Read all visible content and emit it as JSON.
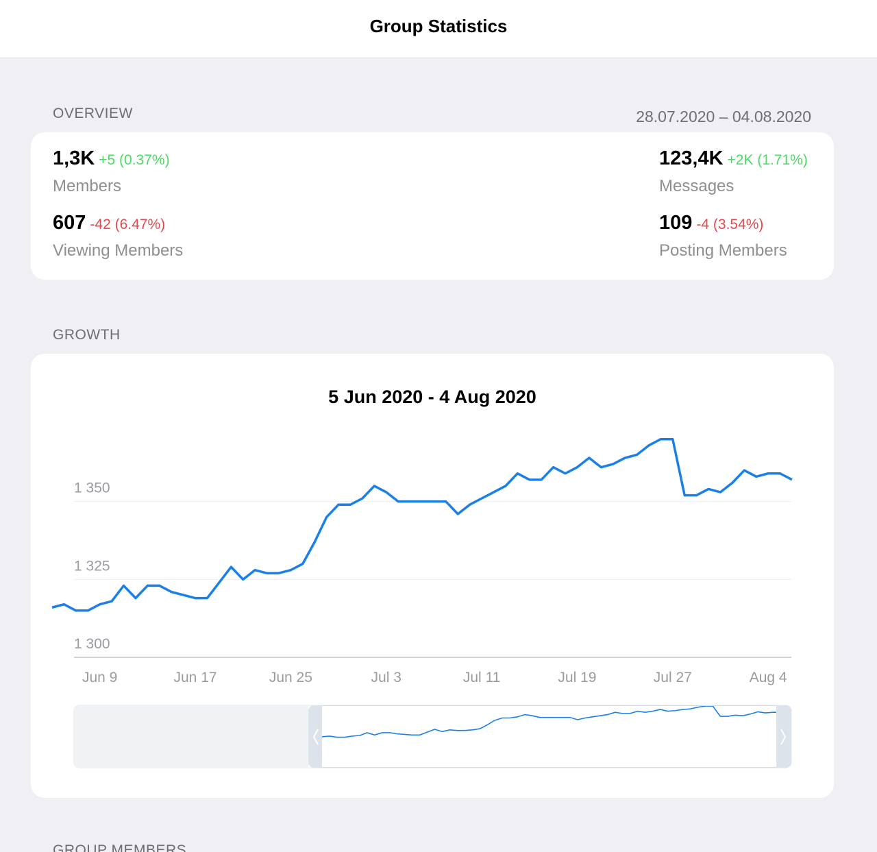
{
  "header": {
    "title": "Group Statistics"
  },
  "overview": {
    "label": "OVERVIEW",
    "period": "28.07.2020 – 04.08.2020",
    "stats": [
      {
        "value": "1,3K",
        "change": "+5 (0.37%)",
        "label": "Members",
        "trend": "up"
      },
      {
        "value": "123,4K",
        "change": "+2K (1.71%)",
        "label": "Messages",
        "trend": "up"
      },
      {
        "value": "607",
        "change": "-42 (6.47%)",
        "label": "Viewing Members",
        "trend": "down"
      },
      {
        "value": "109",
        "change": "-4 (3.54%)",
        "label": "Posting Members",
        "trend": "down"
      }
    ]
  },
  "growth": {
    "label": "GROWTH"
  },
  "chart_data": {
    "type": "line",
    "title": "5 Jun 2020 - 4 Aug 2020",
    "categories": [
      null,
      null,
      null,
      null,
      "Jun 9",
      null,
      null,
      null,
      null,
      null,
      null,
      null,
      "Jun 17",
      null,
      null,
      null,
      null,
      null,
      null,
      null,
      "Jun 25",
      null,
      null,
      null,
      null,
      null,
      null,
      null,
      "Jul 3",
      null,
      null,
      null,
      null,
      null,
      null,
      null,
      "Jul 11",
      null,
      null,
      null,
      null,
      null,
      null,
      null,
      "Jul 19",
      null,
      null,
      null,
      null,
      null,
      null,
      null,
      "Jul 27",
      null,
      null,
      null,
      null,
      null,
      null,
      null,
      "Aug 4",
      null,
      null
    ],
    "series": [
      {
        "color": "#1a80e8",
        "values": [
          1316,
          1317,
          1315,
          1315,
          1317,
          1318,
          1323,
          1319,
          1323,
          1323,
          1321,
          1320,
          1319,
          1319,
          1324,
          1329,
          1325,
          1328,
          1327,
          1327,
          1328,
          1330,
          1337,
          1345,
          1349,
          1349,
          1351,
          1355,
          1353,
          1350,
          1350,
          1350,
          1350,
          1350,
          1346,
          1349,
          1351,
          1353,
          1355,
          1359,
          1357,
          1357,
          1361,
          1359,
          1361,
          1364,
          1361,
          1362,
          1364,
          1365,
          1368,
          1370,
          1370,
          1352,
          1352,
          1354,
          1353,
          1356,
          1360,
          1358,
          1359,
          1359,
          1357
        ]
      }
    ],
    "ylim": [
      1300,
      1375
    ],
    "yticks": [
      {
        "value": 1300,
        "label": "1 300"
      },
      {
        "value": 1325,
        "label": "1 325"
      },
      {
        "value": 1350,
        "label": "1 350"
      }
    ],
    "grid": true
  },
  "next_section": {
    "label": "GROUP MEMBERS"
  }
}
